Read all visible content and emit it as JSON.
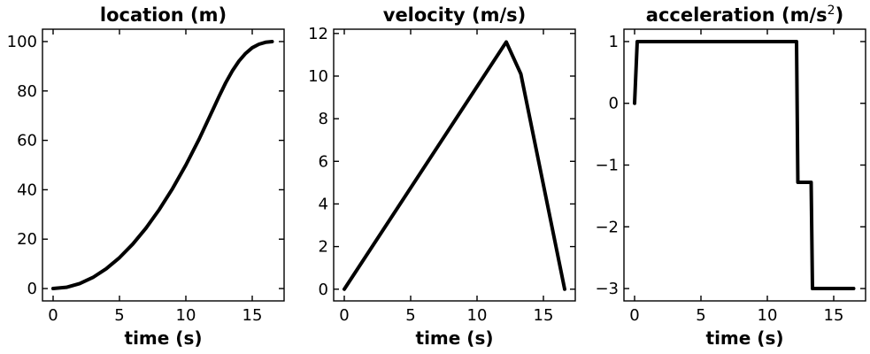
{
  "chart_data": [
    {
      "type": "line",
      "title": "location (m)",
      "title_suffix": "",
      "xlabel": "time (s)",
      "ylabel": "",
      "xlim": [
        -0.8,
        17.4
      ],
      "ylim": [
        -5,
        105
      ],
      "xticks": [
        0,
        5,
        10,
        15
      ],
      "yticks": [
        0,
        20,
        40,
        60,
        80,
        100
      ],
      "series": [
        {
          "color": "#000000",
          "x": [
            0,
            1,
            2,
            3,
            4,
            5,
            6,
            7,
            8,
            9,
            10,
            11,
            12,
            12.5,
            13,
            13.5,
            14,
            14.5,
            15,
            15.5,
            16,
            16.5
          ],
          "y": [
            0,
            0.5,
            2,
            4.5,
            8,
            12.5,
            18,
            24.5,
            32,
            40.5,
            50,
            60.5,
            72,
            77.8,
            83.3,
            88.1,
            92.1,
            95.2,
            97.5,
            98.9,
            99.7,
            100
          ]
        }
      ]
    },
    {
      "type": "line",
      "title": "velocity (m/s)",
      "title_suffix": "",
      "xlabel": "time (s)",
      "ylabel": "",
      "xlim": [
        -0.8,
        17.4
      ],
      "ylim": [
        -0.55,
        12.2
      ],
      "xticks": [
        0,
        5,
        10,
        15
      ],
      "yticks": [
        0,
        2,
        4,
        6,
        8,
        10,
        12
      ],
      "series": [
        {
          "color": "#000000",
          "x": [
            0,
            12.2,
            13.3,
            16.6
          ],
          "y": [
            0,
            11.6,
            10.1,
            0
          ]
        }
      ]
    },
    {
      "type": "line",
      "title": "acceleration (m/s",
      "title_suffix": ")",
      "title_superscript": "2",
      "xlabel": "time (s)",
      "ylabel": "",
      "xlim": [
        -0.8,
        17.4
      ],
      "ylim": [
        -3.2,
        1.2
      ],
      "xticks": [
        0,
        5,
        10,
        15
      ],
      "yticks": [
        1,
        0,
        -1,
        -2,
        -3
      ],
      "ytick_labels": [
        "1",
        "0",
        "−1",
        "−2",
        "−3"
      ],
      "series": [
        {
          "color": "#000000",
          "x": [
            0,
            0.2,
            12.2,
            12.3,
            13.3,
            13.4,
            16.5
          ],
          "y": [
            0,
            1,
            1,
            -1.28,
            -1.28,
            -3,
            -3
          ]
        }
      ]
    }
  ]
}
